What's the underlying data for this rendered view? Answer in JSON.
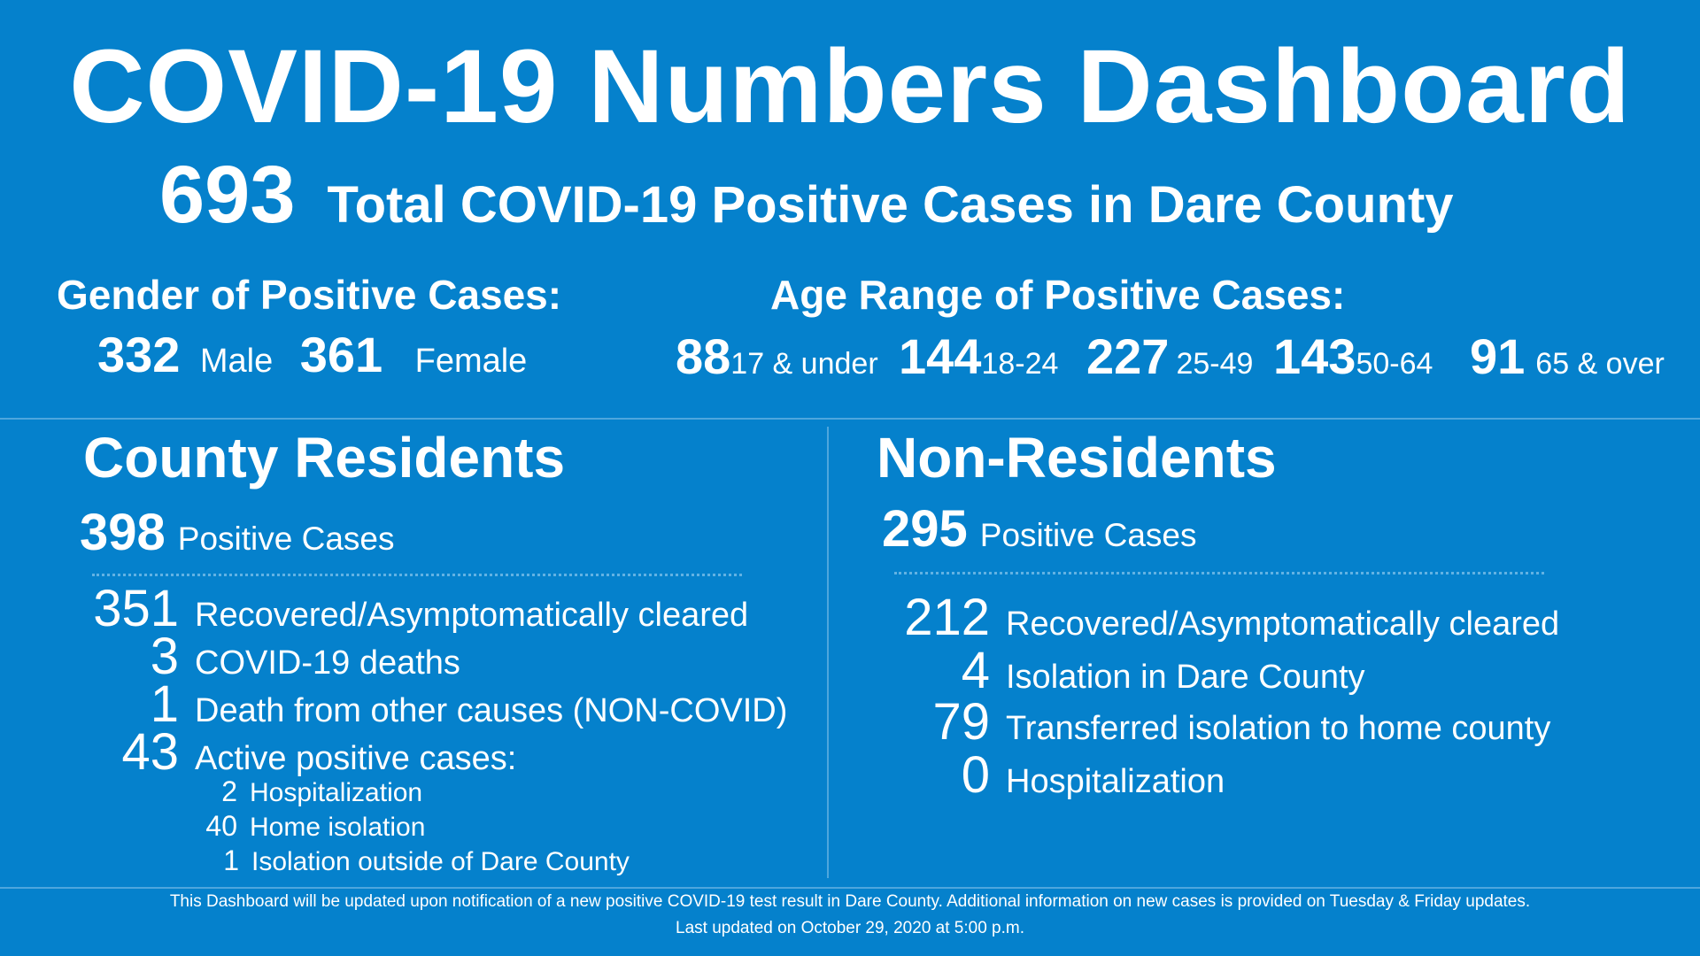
{
  "title": "COVID-19 Numbers Dashboard",
  "total": {
    "value": "693",
    "label": "Total COVID-19 Positive Cases in Dare County"
  },
  "gender": {
    "heading": "Gender of Positive Cases:",
    "male_value": "332",
    "male_label": "Male",
    "female_value": "361",
    "female_label": "Female"
  },
  "age": {
    "heading": "Age Range of Positive Cases:",
    "groups": [
      {
        "value": "88",
        "label": "17 & under"
      },
      {
        "value": "144",
        "label": "18-24"
      },
      {
        "value": "227",
        "label": "25-49"
      },
      {
        "value": "143",
        "label": "50-64"
      },
      {
        "value": "91",
        "label": "65 & over"
      }
    ]
  },
  "residents": {
    "heading": "County Residents",
    "positive_value": "398",
    "positive_label": "Positive Cases",
    "stats": [
      {
        "value": "351",
        "label": "Recovered/Asymptomatically cleared"
      },
      {
        "value": "3",
        "label": "COVID-19 deaths"
      },
      {
        "value": "1",
        "label": "Death from other causes (NON-COVID)"
      },
      {
        "value": "43",
        "label": "Active positive cases:"
      }
    ],
    "active_breakdown": [
      {
        "value": "2",
        "label": "Hospitalization"
      },
      {
        "value": "40",
        "label": "Home isolation"
      },
      {
        "value": "1",
        "label": "Isolation outside of Dare County"
      }
    ]
  },
  "non_residents": {
    "heading": "Non-Residents",
    "positive_value": "295",
    "positive_label": "Positive Cases",
    "stats": [
      {
        "value": "212",
        "label": "Recovered/Asymptomatically cleared"
      },
      {
        "value": "4",
        "label": "Isolation in Dare County"
      },
      {
        "value": "79",
        "label": "Transferred isolation to home county"
      },
      {
        "value": "0",
        "label": "Hospitalization"
      }
    ]
  },
  "footer": {
    "line1": "This Dashboard will be updated upon notification of a new positive COVID-19 test result in Dare County. Additional information on new cases is provided on Tuesday & Friday updates.",
    "line2": "Last updated on October 29, 2020 at 5:00 p.m."
  },
  "colors": {
    "background": "#0581cc",
    "text": "#ffffff",
    "divider": "#4ea6dd"
  }
}
